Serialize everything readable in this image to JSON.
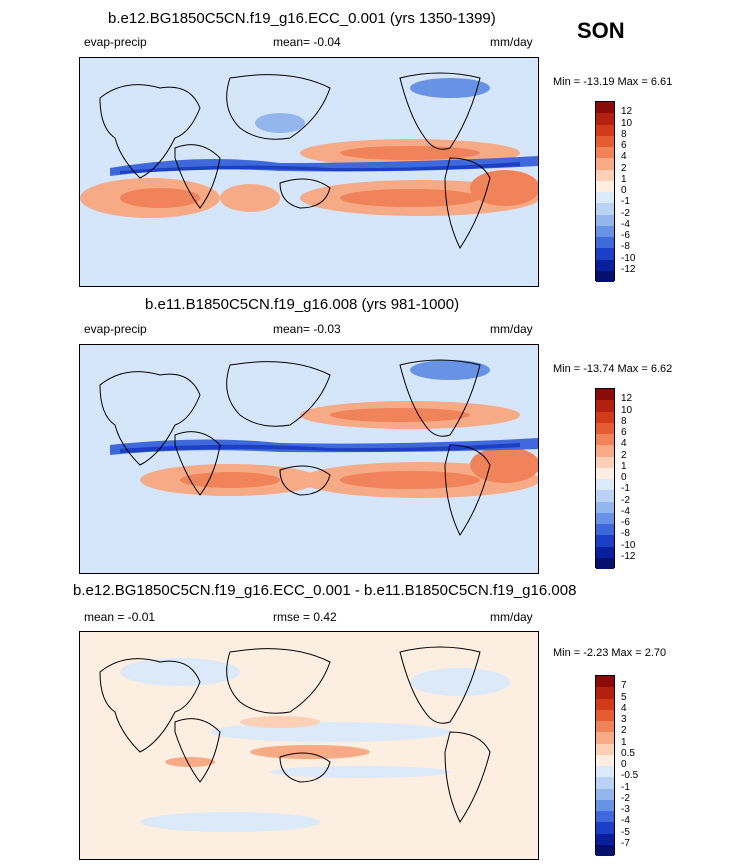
{
  "season": "SON",
  "panels": [
    {
      "title": "b.e12.BG1850C5CN.f19_g16.ECC_0.001 (yrs 1350-1399)",
      "left_label": "evap-precip",
      "mid_label": "mean=  -0.04",
      "units": "mm/day",
      "minmax": "Min = -13.19 Max =   6.61",
      "colorbar_ticks": [
        "12",
        "10",
        "8",
        "6",
        "4",
        "2",
        "1",
        "0",
        "-1",
        "-2",
        "-4",
        "-6",
        "-8",
        "-10",
        "-12"
      ],
      "colors": [
        "#8b0a0a",
        "#b22010",
        "#d23a1a",
        "#e65c32",
        "#f0835a",
        "#f6aa86",
        "#fbd0b6",
        "#fdeee2",
        "#dbe9f8",
        "#bad3f2",
        "#93b7ec",
        "#6893e4",
        "#3f68da",
        "#1c3fc6",
        "#0a1f9e",
        "#05106e"
      ]
    },
    {
      "title": "b.e11.B1850C5CN.f19_g16.008 (yrs 981-1000)",
      "left_label": "evap-precip",
      "mid_label": "mean=  -0.03",
      "units": "mm/day",
      "minmax": "Min = -13.74 Max =   6.62",
      "colorbar_ticks": [
        "12",
        "10",
        "8",
        "6",
        "4",
        "2",
        "1",
        "0",
        "-1",
        "-2",
        "-4",
        "-6",
        "-8",
        "-10",
        "-12"
      ],
      "colors": [
        "#8b0a0a",
        "#b22010",
        "#d23a1a",
        "#e65c32",
        "#f0835a",
        "#f6aa86",
        "#fbd0b6",
        "#fdeee2",
        "#dbe9f8",
        "#bad3f2",
        "#93b7ec",
        "#6893e4",
        "#3f68da",
        "#1c3fc6",
        "#0a1f9e",
        "#05106e"
      ]
    },
    {
      "title": "b.e12.BG1850C5CN.f19_g16.ECC_0.001 - b.e11.B1850C5CN.f19_g16.008",
      "left_label": "mean =  -0.01",
      "mid_label": "rmse =   0.42",
      "units": "mm/day",
      "minmax": "Min =  -2.23 Max =   2.70",
      "colorbar_ticks": [
        "7",
        "5",
        "4",
        "3",
        "2",
        "1",
        "0.5",
        "0",
        "-0.5",
        "-1",
        "-2",
        "-3",
        "-4",
        "-5",
        "-7"
      ],
      "colors": [
        "#8b0a0a",
        "#b22010",
        "#d23a1a",
        "#e65c32",
        "#f0835a",
        "#f6aa86",
        "#fbd0b6",
        "#fdeee2",
        "#dbe9f8",
        "#bad3f2",
        "#93b7ec",
        "#6893e4",
        "#3f68da",
        "#1c3fc6",
        "#0a1f9e",
        "#05106e"
      ]
    }
  ]
}
